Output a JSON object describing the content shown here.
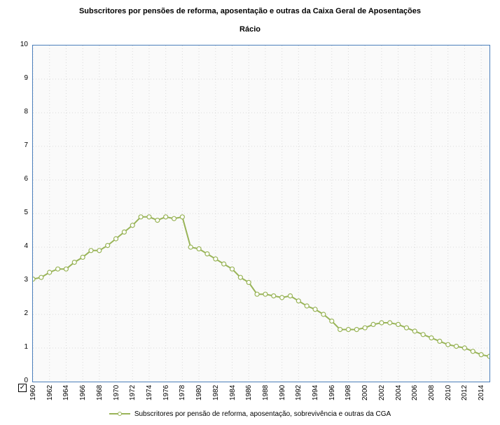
{
  "title": "Subscritores por pensões de reforma, aposentação e outras da Caixa Geral de Aposentações",
  "subtitle": "Rácio",
  "chart": {
    "type": "line",
    "background_color": "#fafafa",
    "border_color": "#4a7ebb",
    "grid_color": "#d9d9d9",
    "series_color": "#99b458",
    "marker_fill": "#ffffff",
    "marker_radius": 3,
    "line_width": 2,
    "ylim": [
      0,
      10
    ],
    "ytick_step": 1,
    "xlim": [
      1960,
      2015
    ],
    "xtick_step": 2,
    "xtick_rotation": -90,
    "x_values": [
      1960,
      1961,
      1962,
      1963,
      1964,
      1965,
      1966,
      1967,
      1968,
      1969,
      1970,
      1971,
      1972,
      1973,
      1974,
      1975,
      1976,
      1977,
      1978,
      1979,
      1980,
      1981,
      1982,
      1983,
      1984,
      1985,
      1986,
      1987,
      1988,
      1989,
      1990,
      1991,
      1992,
      1993,
      1994,
      1995,
      1996,
      1997,
      1998,
      1999,
      2000,
      2001,
      2002,
      2003,
      2004,
      2005,
      2006,
      2007,
      2008,
      2009,
      2010,
      2011,
      2012,
      2013,
      2014,
      2015
    ],
    "y_values": [
      3.05,
      3.1,
      3.25,
      3.35,
      3.35,
      3.55,
      3.7,
      3.9,
      3.9,
      4.05,
      4.25,
      4.45,
      4.65,
      4.9,
      4.9,
      4.8,
      4.9,
      4.85,
      4.9,
      4.0,
      3.95,
      3.8,
      3.65,
      3.5,
      3.35,
      3.1,
      2.95,
      2.6,
      2.6,
      2.55,
      2.5,
      2.55,
      2.4,
      2.25,
      2.15,
      2.0,
      1.8,
      1.55,
      1.55,
      1.55,
      1.6,
      1.7,
      1.75,
      1.75,
      1.7,
      1.6,
      1.5,
      1.4,
      1.3,
      1.2,
      1.1,
      1.05,
      1.0,
      0.9,
      0.8,
      0.75
    ]
  },
  "legend": {
    "checkbox_checked": true,
    "label": "Subscritores por pensão de reforma, aposentação, sobrevivência e outras da CGA"
  }
}
